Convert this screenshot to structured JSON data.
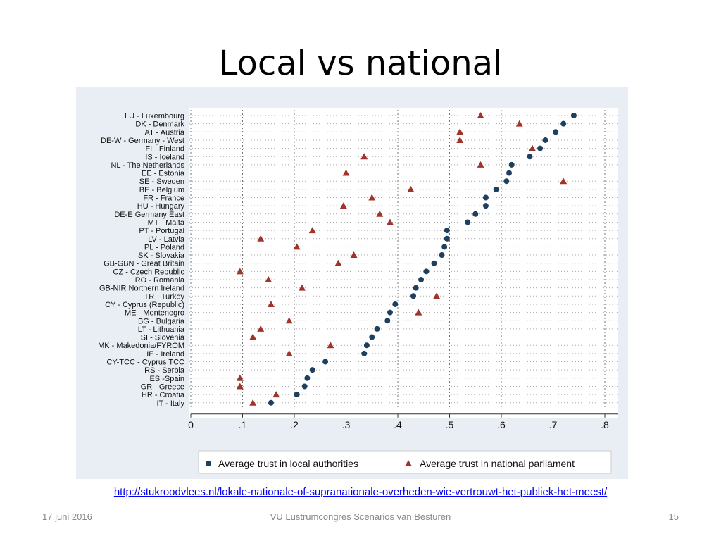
{
  "slide": {
    "title": "Local vs national",
    "source_url": "http://stukroodvlees.nl/lokale-nationale-of-supranationale-overheden-wie-vertrouwt-het-publiek-het-meest/",
    "footer_date": "17 juni 2016",
    "footer_center": "VU Lustrumcongres Scenarios van Besturen",
    "page_number": "15"
  },
  "chart_data": {
    "type": "scatter",
    "title": "",
    "xlabel": "",
    "ylabel": "",
    "xlim": [
      0,
      0.8
    ],
    "grid": true,
    "legend_placement": "bottom",
    "x_ticks": [
      "0",
      ".1",
      ".2",
      ".3",
      ".4",
      ".5",
      ".6",
      ".7",
      ".8"
    ],
    "categories": [
      "LU - Luxembourg",
      "DK - Denmark",
      "AT - Austria",
      "DE-W - Germany - West",
      "FI - Finland",
      "IS - Iceland",
      "NL - The Netherlands",
      "EE - Estonia",
      "SE - Sweden",
      "BE - Belgium",
      "FR - France",
      "HU - Hungary",
      "DE-E Germany East",
      "MT - Malta",
      "PT - Portugal",
      "LV - Latvia",
      "PL - Poland",
      "SK - Slovakia",
      "GB-GBN - Great Britain",
      "CZ - Czech Republic",
      "RO - Romania",
      "GB-NIR Northern Ireland",
      "TR - Turkey",
      "CY - Cyprus (Republic)",
      "ME - Montenegro",
      "BG - Bulgaria",
      "LT - Lithuania",
      "SI - Slovenia",
      "MK - Makedonia/FYROM",
      "IE - Ireland",
      "CY-TCC - Cyprus TCC",
      "RS - Serbia",
      "ES -Spain",
      "GR - Greece",
      "HR - Croatia",
      "IT - Italy"
    ],
    "series": [
      {
        "name": "Average trust in local authorities",
        "marker": "circle",
        "color": "#1f3f5f",
        "values": [
          0.74,
          0.72,
          0.705,
          0.685,
          0.675,
          0.655,
          0.62,
          0.615,
          0.61,
          0.59,
          0.57,
          0.57,
          0.55,
          0.535,
          0.495,
          0.495,
          0.49,
          0.485,
          0.47,
          0.455,
          0.445,
          0.435,
          0.43,
          0.395,
          0.385,
          0.38,
          0.36,
          0.35,
          0.34,
          0.335,
          0.26,
          0.235,
          0.225,
          0.22,
          0.205,
          0.155
        ]
      },
      {
        "name": "Average trust in national parliament",
        "marker": "triangle",
        "color": "#a0342a",
        "values": [
          0.56,
          0.635,
          0.52,
          0.52,
          0.66,
          0.335,
          0.56,
          0.3,
          0.72,
          0.425,
          0.35,
          0.295,
          0.365,
          0.385,
          0.235,
          0.135,
          0.205,
          0.315,
          0.285,
          0.095,
          0.15,
          0.215,
          0.475,
          0.155,
          0.44,
          0.19,
          0.135,
          0.12,
          0.27,
          0.19,
          null,
          null,
          0.095,
          0.095,
          0.165,
          0.12
        ]
      }
    ]
  }
}
